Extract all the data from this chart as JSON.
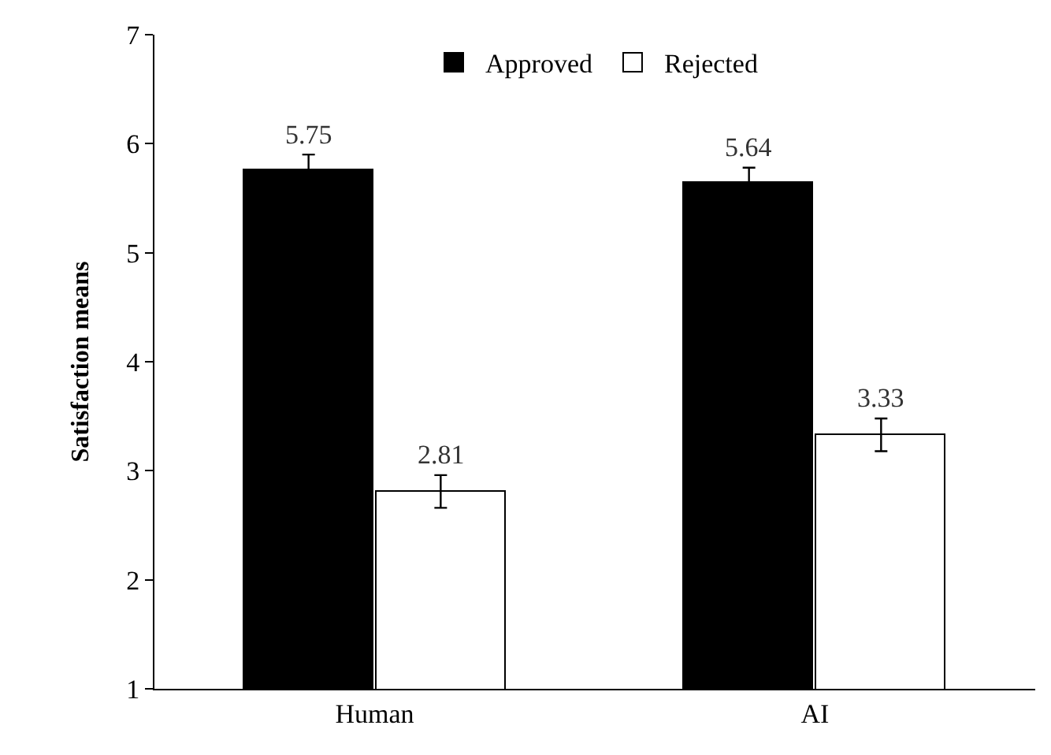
{
  "chart_data": {
    "type": "bar",
    "ylabel": "Satisfaction means",
    "categories": [
      "Human",
      "AI"
    ],
    "series": [
      {
        "name": "Approved",
        "color": "#000000",
        "values": [
          5.75,
          5.64
        ],
        "errors": [
          0.15,
          0.14
        ]
      },
      {
        "name": "Rejected",
        "color": "#ffffff",
        "values": [
          2.81,
          3.33
        ],
        "errors": [
          0.15,
          0.15
        ]
      }
    ],
    "ylim": [
      1,
      7
    ],
    "yticks": [
      1,
      2,
      3,
      4,
      5,
      6,
      7
    ],
    "grid": false,
    "legend": "top",
    "data_labels": true
  }
}
